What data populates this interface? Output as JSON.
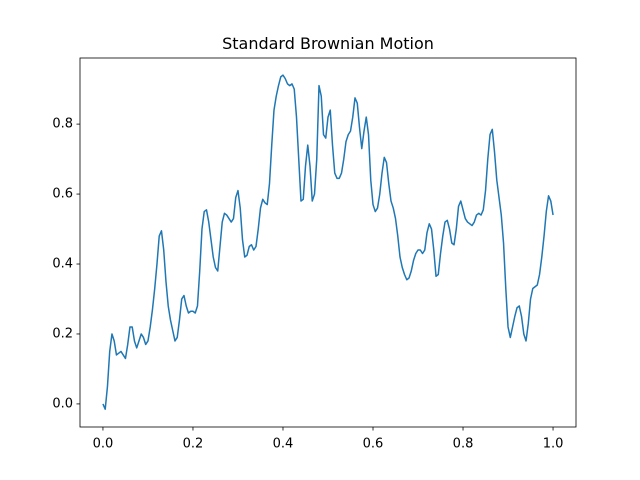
{
  "chart_data": {
    "type": "line",
    "title": "Standard Brownian Motion",
    "color": "#1f77b4",
    "xlim": [
      -0.051,
      1.051
    ],
    "ylim": [
      -0.066,
      0.989
    ],
    "xticks": [
      {
        "value": 0,
        "label": "0.0"
      },
      {
        "value": 0.2,
        "label": "0.2"
      },
      {
        "value": 0.4,
        "label": "0.4"
      },
      {
        "value": 0.6,
        "label": "0.6"
      },
      {
        "value": 0.8,
        "label": "0.8"
      },
      {
        "value": 1,
        "label": "1.0"
      }
    ],
    "yticks": [
      {
        "value": 0,
        "label": "0.0"
      },
      {
        "value": 0.2,
        "label": "0.2"
      },
      {
        "value": 0.4,
        "label": "0.4"
      },
      {
        "value": 0.6,
        "label": "0.6"
      },
      {
        "value": 0.8,
        "label": "0.8"
      }
    ],
    "x": [
      0,
      0.005,
      0.01,
      0.015,
      0.02,
      0.025,
      0.03,
      0.035,
      0.04,
      0.045,
      0.05,
      0.055,
      0.06,
      0.065,
      0.07,
      0.075,
      0.08,
      0.085,
      0.09,
      0.095,
      0.1,
      0.105,
      0.11,
      0.115,
      0.12,
      0.125,
      0.13,
      0.135,
      0.14,
      0.145,
      0.15,
      0.155,
      0.16,
      0.165,
      0.17,
      0.175,
      0.18,
      0.185,
      0.19,
      0.195,
      0.2,
      0.205,
      0.21,
      0.215,
      0.22,
      0.225,
      0.23,
      0.235,
      0.24,
      0.245,
      0.25,
      0.255,
      0.26,
      0.265,
      0.27,
      0.275,
      0.28,
      0.285,
      0.29,
      0.295,
      0.3,
      0.305,
      0.31,
      0.315,
      0.32,
      0.325,
      0.33,
      0.335,
      0.34,
      0.345,
      0.35,
      0.355,
      0.36,
      0.365,
      0.37,
      0.375,
      0.38,
      0.385,
      0.39,
      0.395,
      0.4,
      0.405,
      0.41,
      0.415,
      0.42,
      0.425,
      0.43,
      0.435,
      0.44,
      0.445,
      0.45,
      0.455,
      0.46,
      0.465,
      0.47,
      0.475,
      0.48,
      0.485,
      0.49,
      0.495,
      0.5,
      0.505,
      0.51,
      0.515,
      0.52,
      0.525,
      0.53,
      0.535,
      0.54,
      0.545,
      0.55,
      0.555,
      0.56,
      0.565,
      0.57,
      0.575,
      0.58,
      0.585,
      0.59,
      0.595,
      0.6,
      0.605,
      0.61,
      0.615,
      0.62,
      0.625,
      0.63,
      0.635,
      0.64,
      0.645,
      0.65,
      0.655,
      0.66,
      0.665,
      0.67,
      0.675,
      0.68,
      0.685,
      0.69,
      0.695,
      0.7,
      0.705,
      0.71,
      0.715,
      0.72,
      0.725,
      0.73,
      0.735,
      0.74,
      0.745,
      0.75,
      0.755,
      0.76,
      0.765,
      0.77,
      0.775,
      0.78,
      0.785,
      0.79,
      0.795,
      0.8,
      0.805,
      0.81,
      0.815,
      0.82,
      0.825,
      0.83,
      0.835,
      0.84,
      0.845,
      0.85,
      0.855,
      0.86,
      0.865,
      0.87,
      0.875,
      0.88,
      0.885,
      0.89,
      0.895,
      0.9,
      0.905,
      0.91,
      0.915,
      0.92,
      0.925,
      0.93,
      0.935,
      0.94,
      0.945,
      0.95,
      0.955,
      0.96,
      0.965,
      0.97,
      0.975,
      0.98,
      0.985,
      0.99,
      0.995,
      1
    ],
    "values": [
      0,
      -0.015,
      0.05,
      0.15,
      0.2,
      0.18,
      0.14,
      0.145,
      0.15,
      0.14,
      0.13,
      0.17,
      0.22,
      0.22,
      0.18,
      0.16,
      0.18,
      0.2,
      0.19,
      0.17,
      0.18,
      0.22,
      0.27,
      0.33,
      0.4,
      0.48,
      0.495,
      0.44,
      0.35,
      0.28,
      0.24,
      0.21,
      0.18,
      0.19,
      0.24,
      0.3,
      0.31,
      0.28,
      0.26,
      0.265,
      0.265,
      0.26,
      0.28,
      0.38,
      0.5,
      0.55,
      0.555,
      0.52,
      0.47,
      0.42,
      0.39,
      0.38,
      0.45,
      0.52,
      0.545,
      0.54,
      0.53,
      0.52,
      0.53,
      0.59,
      0.61,
      0.56,
      0.47,
      0.42,
      0.425,
      0.45,
      0.455,
      0.44,
      0.45,
      0.5,
      0.56,
      0.585,
      0.575,
      0.57,
      0.63,
      0.74,
      0.84,
      0.88,
      0.91,
      0.935,
      0.94,
      0.93,
      0.915,
      0.91,
      0.915,
      0.9,
      0.82,
      0.7,
      0.58,
      0.585,
      0.68,
      0.74,
      0.68,
      0.58,
      0.6,
      0.7,
      0.91,
      0.88,
      0.77,
      0.76,
      0.82,
      0.84,
      0.74,
      0.66,
      0.645,
      0.645,
      0.66,
      0.7,
      0.75,
      0.77,
      0.78,
      0.82,
      0.875,
      0.86,
      0.79,
      0.73,
      0.78,
      0.82,
      0.77,
      0.64,
      0.57,
      0.55,
      0.56,
      0.6,
      0.66,
      0.705,
      0.69,
      0.63,
      0.58,
      0.56,
      0.53,
      0.48,
      0.42,
      0.39,
      0.37,
      0.355,
      0.36,
      0.38,
      0.41,
      0.43,
      0.44,
      0.44,
      0.43,
      0.44,
      0.49,
      0.515,
      0.5,
      0.44,
      0.365,
      0.37,
      0.43,
      0.48,
      0.52,
      0.525,
      0.5,
      0.46,
      0.455,
      0.5,
      0.565,
      0.58,
      0.555,
      0.53,
      0.52,
      0.515,
      0.51,
      0.52,
      0.54,
      0.545,
      0.54,
      0.555,
      0.61,
      0.7,
      0.77,
      0.785,
      0.72,
      0.64,
      0.59,
      0.54,
      0.46,
      0.33,
      0.22,
      0.19,
      0.22,
      0.25,
      0.275,
      0.28,
      0.25,
      0.2,
      0.18,
      0.23,
      0.3,
      0.33,
      0.335,
      0.34,
      0.37,
      0.42,
      0.48,
      0.55,
      0.595,
      0.58,
      0.54
    ]
  }
}
